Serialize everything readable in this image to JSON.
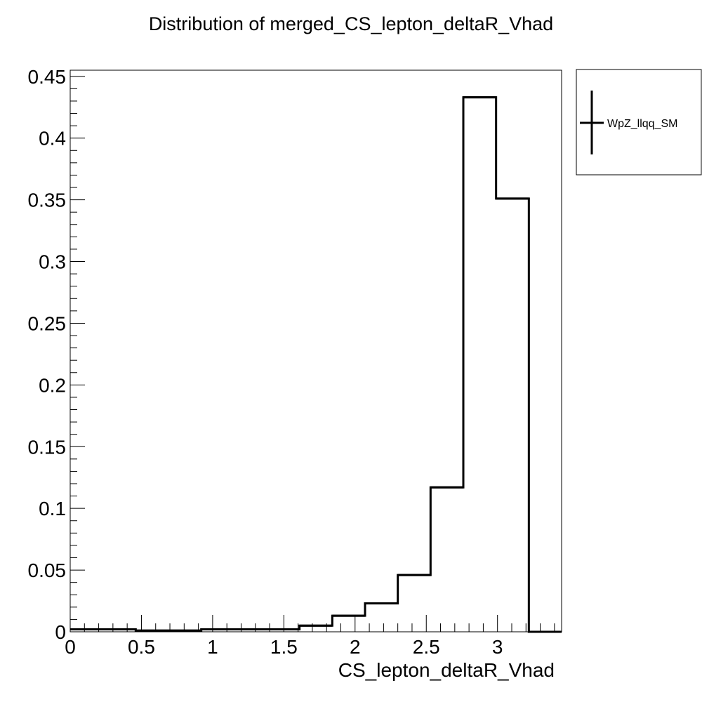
{
  "chart_data": {
    "type": "histogram",
    "title": "Distribution of merged_CS_lepton_deltaR_Vhad",
    "xlabel": "CS_lepton_deltaR_Vhad",
    "ylabel": "",
    "xlim": [
      0,
      3.45
    ],
    "ylim": [
      0,
      0.455
    ],
    "grid": false,
    "legend_position": "top-right, outside plot",
    "line_color": "#000000",
    "x_ticks": [
      0,
      0.5,
      1,
      1.5,
      2,
      2.5,
      3
    ],
    "x_tick_labels": [
      "0",
      "0.5",
      "1",
      "1.5",
      "2",
      "2.5",
      "3"
    ],
    "y_ticks": [
      0,
      0.05,
      0.1,
      0.15,
      0.2,
      0.25,
      0.3,
      0.35,
      0.4,
      0.45
    ],
    "y_tick_labels": [
      "0",
      "0.05",
      "0.1",
      "0.15",
      "0.2",
      "0.25",
      "0.3",
      "0.35",
      "0.4",
      "0.45"
    ],
    "bin_edges": [
      0,
      0.23,
      0.46,
      0.69,
      0.92,
      1.15,
      1.38,
      1.61,
      1.84,
      2.07,
      2.3,
      2.53,
      2.76,
      2.99,
      3.22,
      3.45
    ],
    "series": [
      {
        "name": "WpZ_llqq_SM",
        "values": [
          0.002,
          0.002,
          0.001,
          0.001,
          0.002,
          0.002,
          0.002,
          0.005,
          0.013,
          0.023,
          0.046,
          0.117,
          0.433,
          0.351,
          0.0
        ]
      }
    ]
  }
}
